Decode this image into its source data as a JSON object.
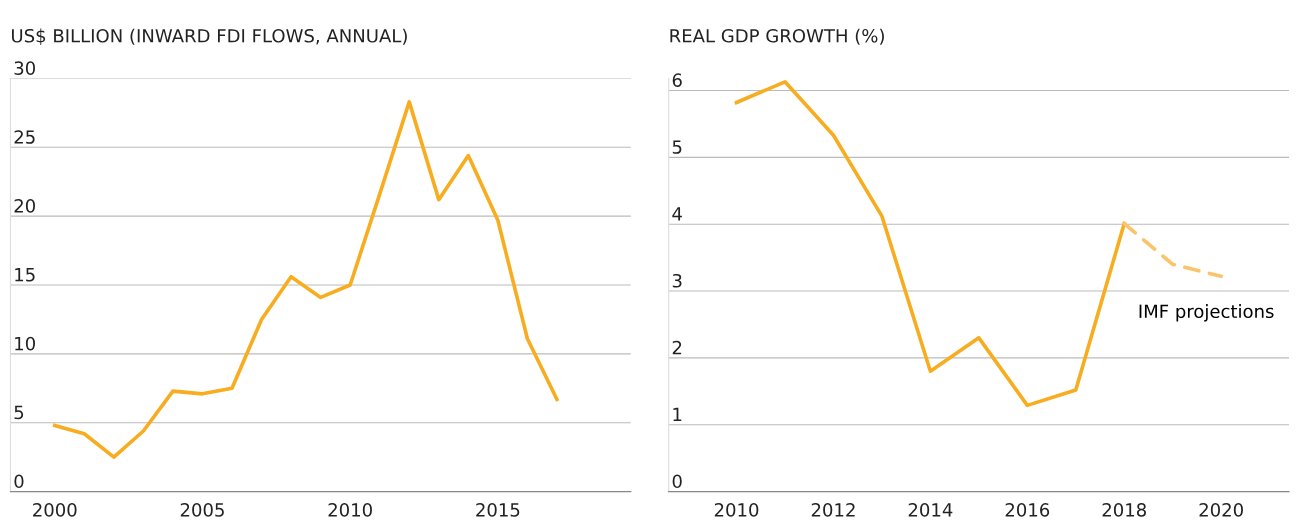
{
  "chart_data": [
    {
      "type": "line",
      "title": "US$ BILLION (INWARD FDI FLOWS, ANNUAL)",
      "xlim": [
        1998.5,
        2019.5
      ],
      "xticks": [
        2000,
        2005,
        2010,
        2015
      ],
      "ylim": [
        0,
        30
      ],
      "yticks": [
        0,
        5,
        10,
        15,
        20,
        25,
        30
      ],
      "grid": "y",
      "series": [
        {
          "color": "#f7ad1f",
          "line_style": "solid",
          "x": [
            2000,
            2001,
            2002,
            2003,
            2004,
            2005,
            2006,
            2007,
            2008,
            2009,
            2010,
            2011,
            2012,
            2013,
            2014,
            2015,
            2016,
            2017
          ],
          "values": [
            4.8,
            4.2,
            2.5,
            4.4,
            7.3,
            7.1,
            7.5,
            12.5,
            15.6,
            14.1,
            15.0,
            21.6,
            28.3,
            21.2,
            24.4,
            19.7,
            11.1,
            6.7
          ]
        }
      ]
    },
    {
      "type": "line",
      "title": "REAL GDP GROWTH (%)",
      "xlim": [
        2008.6,
        2021.4
      ],
      "xticks": [
        2010,
        2012,
        2014,
        2016,
        2018,
        2020
      ],
      "ylim": [
        0,
        6.18
      ],
      "yticks": [
        0,
        1,
        2,
        3,
        4,
        5,
        6
      ],
      "grid": "y",
      "annotations": [
        {
          "text": "IMF projections",
          "x": 2020,
          "y": 3.22
        }
      ],
      "series": [
        {
          "color": "#f7ad1f",
          "line_style": "solid",
          "x": [
            2010,
            2011,
            2012,
            2013,
            2014,
            2015,
            2016,
            2017,
            2018
          ],
          "values": [
            5.82,
            6.13,
            5.33,
            4.12,
            1.8,
            2.3,
            1.29,
            1.52,
            4.01
          ]
        },
        {
          "color": "#f9c46a",
          "line_style": "dashed",
          "x": [
            2018,
            2019,
            2020
          ],
          "values": [
            4.01,
            3.4,
            3.22
          ]
        }
      ]
    }
  ]
}
